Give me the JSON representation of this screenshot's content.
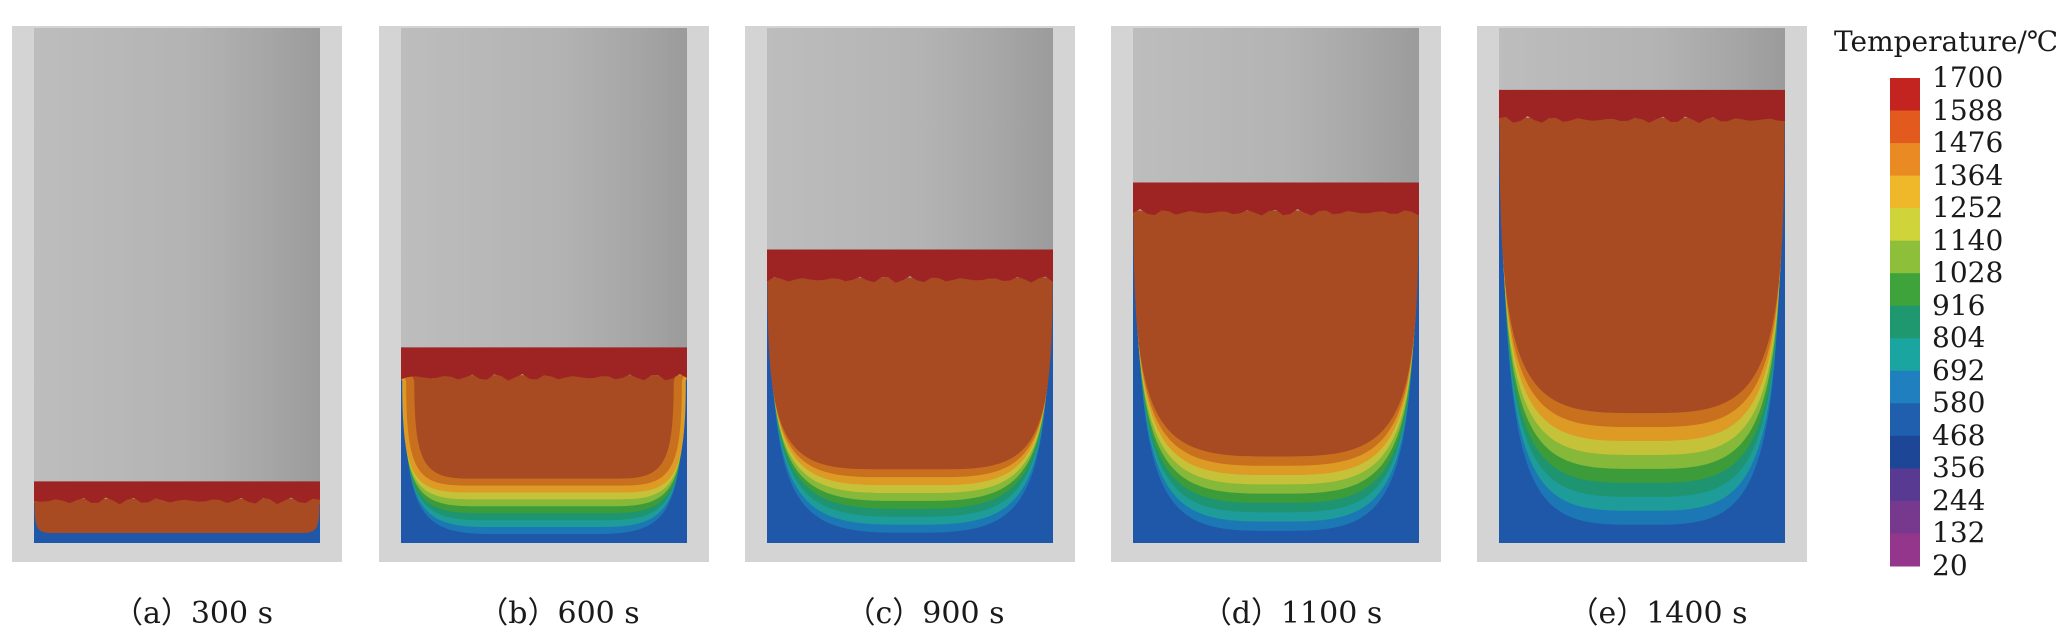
{
  "chart_data": {
    "type": "heatmap",
    "legend_title": "Temperature/℃",
    "legend_ticks": [
      "1700",
      "1588",
      "1476",
      "1364",
      "1252",
      "1140",
      "1028",
      "916",
      "804",
      "692",
      "580",
      "468",
      "356",
      "244",
      "132",
      "20"
    ],
    "legend_colors": [
      "#c4241f",
      "#e35a1f",
      "#ea8a22",
      "#eeb82a",
      "#cfd43a",
      "#8ebf3a",
      "#3fa33b",
      "#1f9870",
      "#1aa5a0",
      "#1f7fbf",
      "#1f5fae",
      "#1d4696",
      "#583a92",
      "#77398e",
      "#93368c"
    ],
    "legend_placement": "right",
    "panels": [
      {
        "label": "（a）300 s",
        "time_s": 300,
        "fill_fraction": 0.12,
        "core_depth": 0.0,
        "core_half_width": 1.0
      },
      {
        "label": "（b）600 s",
        "time_s": 600,
        "fill_fraction": 0.38,
        "core_depth": 0.57,
        "core_half_width": 0.85
      },
      {
        "label": "（c）900 s",
        "time_s": 900,
        "fill_fraction": 0.57,
        "core_depth": 0.69,
        "core_half_width": 0.96
      },
      {
        "label": "（d）1100 s",
        "time_s": 1100,
        "fill_fraction": 0.7,
        "core_depth": 0.71,
        "core_half_width": 1.0
      },
      {
        "label": "（e）1400 s",
        "time_s": 1400,
        "fill_fraction": 0.88,
        "core_depth": 0.66,
        "core_half_width": 1.0
      }
    ]
  }
}
